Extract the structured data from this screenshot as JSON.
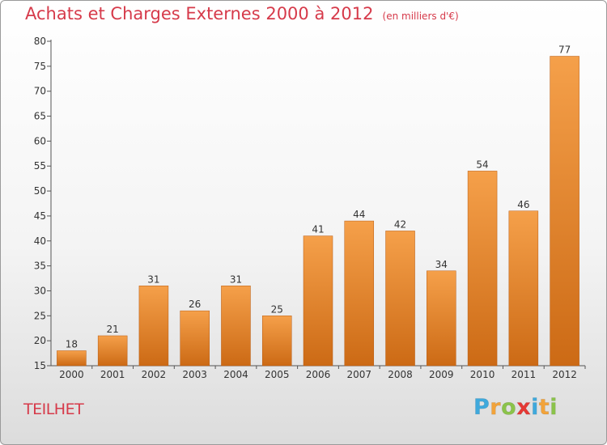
{
  "header": {
    "title": "Achats et Charges Externes 2000 à 2012",
    "unit": "(en milliers d'€)"
  },
  "location": "TEILHET",
  "brand": {
    "letters": [
      "P",
      "r",
      "o",
      "x",
      "i",
      "t",
      "i"
    ],
    "colors": [
      "#3fa9dc",
      "#f2a33a",
      "#8bc34a",
      "#e53935",
      "#3fa9dc",
      "#f2a33a",
      "#8bc34a"
    ]
  },
  "chart_data": {
    "type": "bar",
    "title": "Achats et Charges Externes 2000 à 2012",
    "subtitle": "(en milliers d'€)",
    "categories": [
      "2000",
      "2001",
      "2002",
      "2003",
      "2004",
      "2005",
      "2006",
      "2007",
      "2008",
      "2009",
      "2010",
      "2011",
      "2012"
    ],
    "values": [
      18,
      21,
      31,
      26,
      31,
      25,
      41,
      44,
      42,
      34,
      54,
      46,
      77
    ],
    "ylim": [
      15,
      80
    ],
    "yticks": [
      15,
      20,
      25,
      30,
      35,
      40,
      45,
      50,
      55,
      60,
      65,
      70,
      75,
      80
    ],
    "grid": false,
    "bar_color": "#f5a04a",
    "bar_color_dark": "#cc6a15"
  }
}
